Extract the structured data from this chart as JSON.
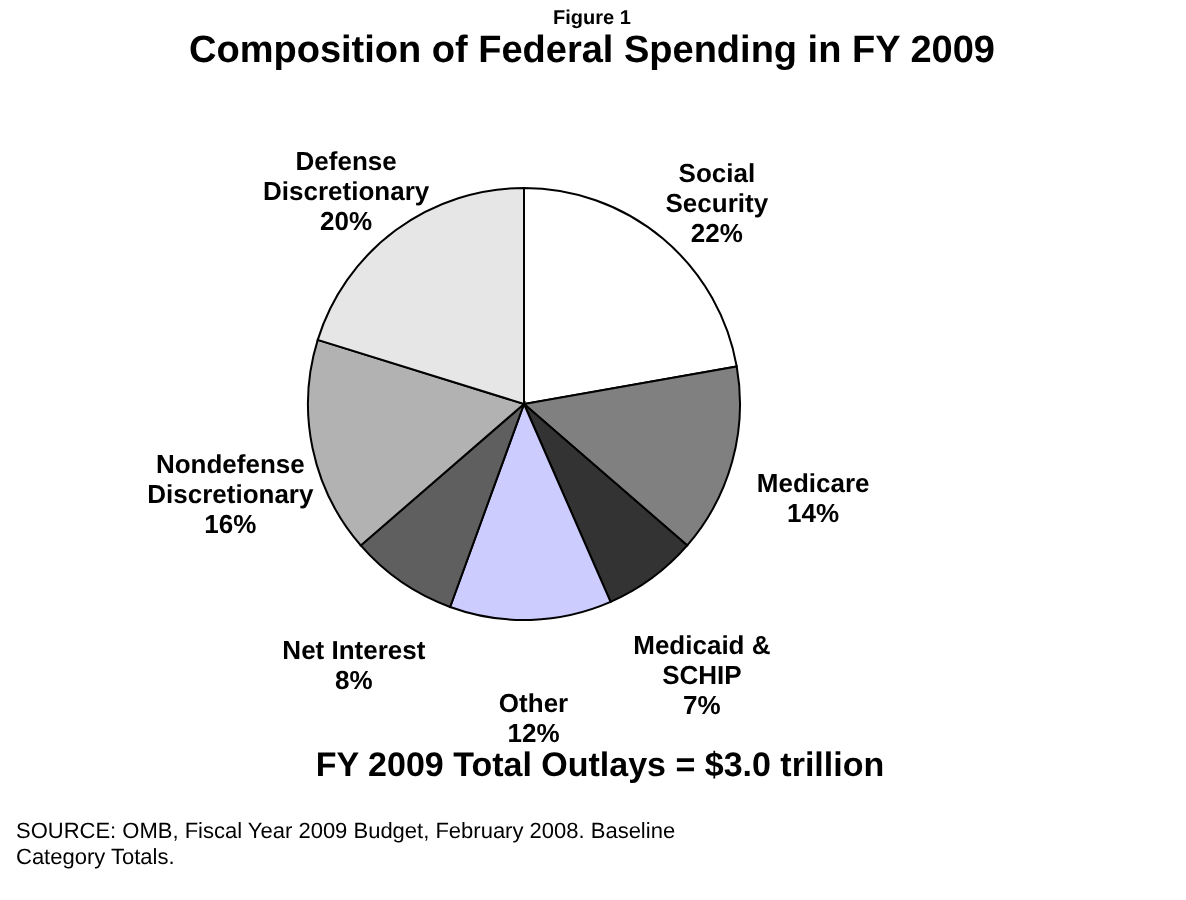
{
  "chart_data": {
    "type": "pie",
    "title": "Composition of Federal Spending in FY 2009",
    "categories": [
      "Social Security",
      "Medicare",
      "Medicaid & SCHIP",
      "Other",
      "Net Interest",
      "Nondefense Discretionary",
      "Defense Discretionary"
    ],
    "values": [
      22,
      14,
      7,
      12,
      8,
      16,
      20
    ],
    "colors": [
      "#ffffff",
      "#808080",
      "#333333",
      "#ccccff",
      "#5f5f5f",
      "#b2b2b2",
      "#e6e6e6"
    ],
    "value_labels": [
      "22%",
      "14%",
      "7%",
      "12%",
      "8%",
      "16%",
      "20%"
    ],
    "annotations": [
      "Figure 1",
      "FY 2009 Total Outlays = $3.0 trillion",
      "SOURCE: OMB, Fiscal Year 2009 Budget, February 2008.  Baseline Category Totals."
    ]
  }
}
